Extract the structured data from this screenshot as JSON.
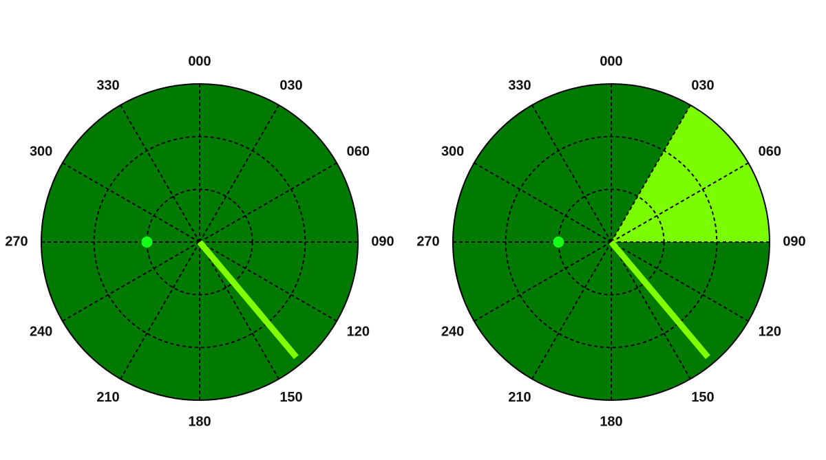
{
  "chart_data": [
    {
      "type": "polar",
      "theta_ticks": [
        {
          "value": 0,
          "label": "000"
        },
        {
          "value": 30,
          "label": "030"
        },
        {
          "value": 60,
          "label": "060"
        },
        {
          "value": 90,
          "label": "090"
        },
        120,
        150,
        180,
        210,
        240,
        270,
        300,
        330
      ],
      "rlim": [
        0,
        3
      ],
      "rticks": [
        1,
        2
      ],
      "face_color": "#007a00",
      "point": {
        "theta": 270,
        "r": 1,
        "color": "#1aff1a"
      },
      "needle": {
        "theta": 140,
        "r": 2.85,
        "color": "#7fff00"
      }
    },
    {
      "type": "polar",
      "theta_ticks": [
        {
          "value": 0,
          "label": "000"
        },
        {
          "value": 30,
          "label": "030"
        },
        {
          "value": 60,
          "label": "060"
        },
        {
          "value": 90,
          "label": "090"
        },
        120,
        150,
        180,
        210,
        240,
        270,
        300,
        330
      ],
      "rlim": [
        0,
        3
      ],
      "rticks": [
        1,
        2
      ],
      "face_color": "#007a00",
      "sector": {
        "theta_from": 30,
        "theta_to": 90,
        "r": 3,
        "color": "#7cfc00"
      },
      "point": {
        "theta": 270,
        "r": 1,
        "color": "#1aff1a"
      },
      "needle": {
        "theta": 140,
        "r": 2.85,
        "color": "#7fff00"
      }
    }
  ]
}
